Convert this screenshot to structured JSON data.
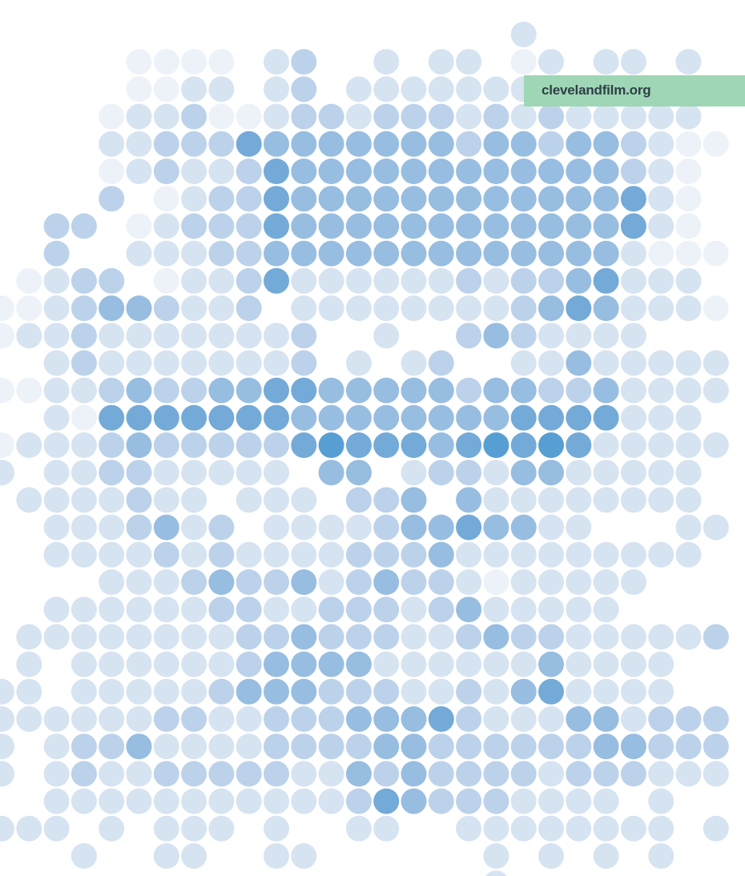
{
  "label": {
    "text": "clevelandfilm.org"
  }
}
